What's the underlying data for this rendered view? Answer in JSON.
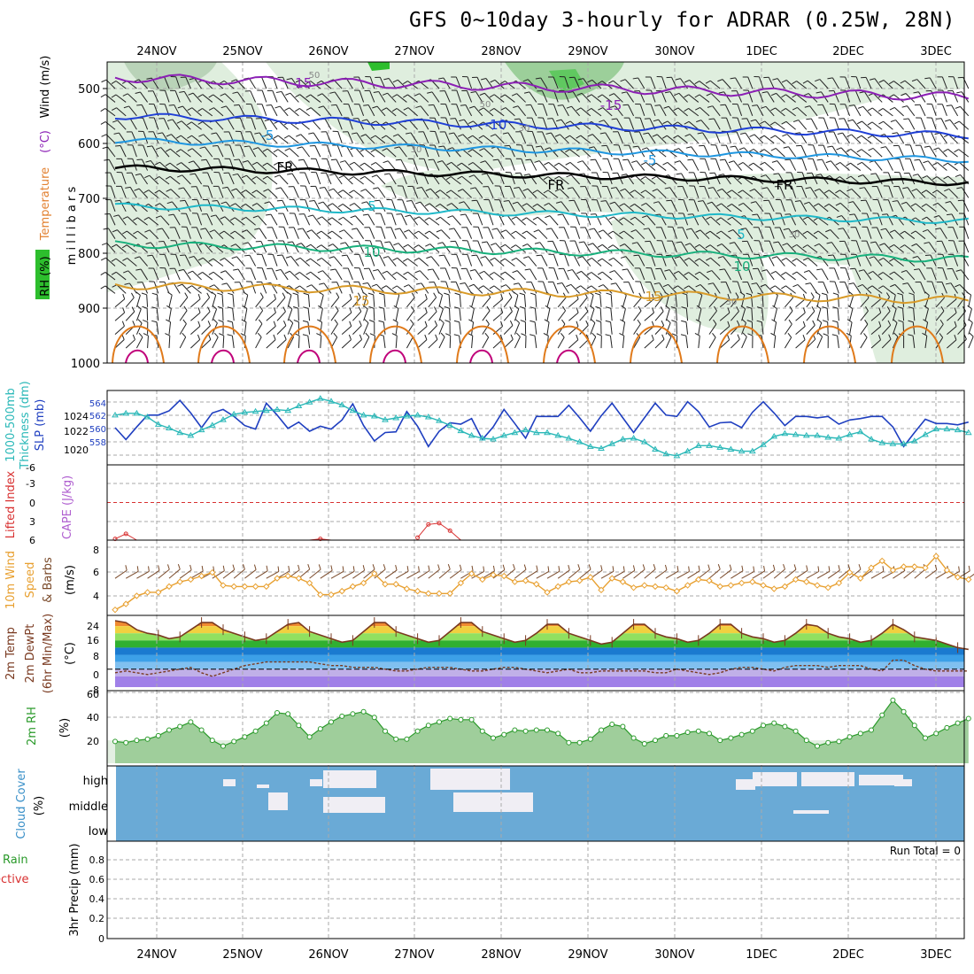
{
  "title": "GFS 0~10day 3-hourly for ADRAR (0.25W, 28N)",
  "dates": [
    "24NOV",
    "25NOV",
    "26NOV",
    "27NOV",
    "28NOV",
    "29NOV",
    "30NOV",
    "1DEC",
    "2DEC",
    "3DEC"
  ],
  "colors": {
    "rh_green": "#2dbe2d",
    "rh_light": "#dfeede",
    "temp_minus15": "#8b1fb5",
    "temp_minus10": "#1f3fd6",
    "temp_minus5": "#1e96e0",
    "temp_fr": "#000000",
    "temp_5": "#1fb8c8",
    "temp_10": "#18b07c",
    "temp_15": "#d89a28",
    "temp_20": "#e07a1a",
    "temp_25": "#c0007a",
    "thickness": "#1f3fc0",
    "slp": "#2ab8b8",
    "lifted": "#d83030",
    "cape": "#b060d0",
    "wind10": "#e8a030",
    "rh2m": "#2a9a2a",
    "cloud": "#6aaad6",
    "cloud_gap": "#f0eef4"
  },
  "upper": {
    "labels": {
      "rh": "RH (%)",
      "temperature": "Temperature",
      "temp_unit": "(°C)",
      "wind": "Wind (m/s)",
      "vertical": "m i l l i b a r s"
    },
    "yticks": [
      "500",
      "600",
      "700",
      "800",
      "900",
      "1000"
    ],
    "contour_labels": [
      {
        "text": "-15",
        "series": "temp_minus15"
      },
      {
        "text": "-15",
        "series": "temp_minus15"
      },
      {
        "text": "-10",
        "series": "temp_minus10"
      },
      {
        "text": "-5",
        "series": "temp_minus5"
      },
      {
        "text": "-5",
        "series": "temp_minus5"
      },
      {
        "text": "FR",
        "series": "temp_fr"
      },
      {
        "text": "FR",
        "series": "temp_fr"
      },
      {
        "text": "FR",
        "series": "temp_fr"
      },
      {
        "text": "5",
        "series": "temp_5"
      },
      {
        "text": "5",
        "series": "temp_5"
      },
      {
        "text": "10",
        "series": "temp_10"
      },
      {
        "text": "10",
        "series": "temp_10"
      },
      {
        "text": "15",
        "series": "temp_15"
      },
      {
        "text": "15",
        "series": "temp_15"
      },
      {
        "text": "50",
        "series": "rh"
      },
      {
        "text": "50",
        "series": "rh"
      },
      {
        "text": "30",
        "series": "rh"
      },
      {
        "text": "30",
        "series": "rh"
      },
      {
        "text": "30",
        "series": "rh"
      },
      {
        "text": "30",
        "series": "rh"
      }
    ]
  },
  "panels": {
    "thick_slp": {
      "label_thickness": "1000-500mb",
      "label_thickness2": "Thickness (dm)",
      "label_slp": "SLP (mb)",
      "yticks_left": [
        "564",
        "562",
        "560",
        "558"
      ],
      "yticks_right": [
        "1024",
        "1022",
        "1020"
      ]
    },
    "li_cape": {
      "label_li": "Lifted Index",
      "label_cape": "CAPE (J/kg)",
      "yticks": [
        "-6",
        "-3",
        "0",
        "3",
        "6"
      ]
    },
    "wind10": {
      "label1": "10m Wind",
      "label2": "Speed",
      "label3": "& Barbs",
      "unit": "(m/s)",
      "yticks": [
        "8",
        "6",
        "4"
      ]
    },
    "temp2m": {
      "label1": "2m Temp",
      "label2": "2m DewPt",
      "label3": "(6hr Min/Max)",
      "unit": "(°C)",
      "yticks": [
        "24",
        "16",
        "8",
        "0",
        "-8"
      ]
    },
    "rh2m": {
      "label": "2m RH",
      "unit": "(%)",
      "yticks": [
        "60",
        "40",
        "20"
      ]
    },
    "cloud": {
      "label1": "Cloud Cover",
      "unit": "(%)",
      "levels": [
        "high",
        "middle",
        "low"
      ]
    },
    "precip": {
      "label1": "Total / Rain",
      "label2": "Convective",
      "label3": "3hr Precip (mm)",
      "run_total": "Run Total = 0",
      "yticks": [
        "0.8",
        "0.6",
        "0.4",
        "0.2",
        "0"
      ]
    }
  },
  "chart_data": [
    {
      "type": "line",
      "title": "",
      "xlabel": "",
      "ylabel": "1000-500mb Thickness (dm)",
      "ylim": [
        557,
        565.6
      ],
      "series": [
        {
          "name": "1000-500mb Thickness (dm)",
          "values": [
            561.3,
            559.6,
            561.4,
            563.1,
            563.1,
            563.7,
            565.2,
            563.4,
            561.3,
            563.4,
            563.9,
            562.9,
            561.6,
            561.1,
            564.8,
            563.1,
            561.2,
            562.1,
            560.8,
            561.5,
            561.1,
            562.4,
            564.7,
            561.6,
            559.4,
            560.6,
            560.7,
            563.6,
            561.5,
            558.6,
            560.8,
            562.0,
            561.8,
            562.6,
            559.6,
            561.4,
            563.9,
            561.9,
            559.8,
            562.9,
            562.9,
            562.9,
            564.5,
            562.7,
            560.8,
            563.0,
            564.8,
            562.7,
            560.6,
            562.7,
            564.8,
            563.1,
            562.9,
            565.0,
            563.6,
            561.4,
            562.0,
            562.1,
            561.3,
            563.5,
            565.0,
            563.4,
            561.6,
            562.9,
            562.9,
            562.7,
            562.9,
            561.8,
            562.4,
            562.6,
            562.9,
            562.9,
            561.4,
            558.6,
            560.6,
            562.5,
            561.9,
            561.9,
            561.7,
            562.1
          ]
        }
      ]
    },
    {
      "type": "line",
      "title": "",
      "xlabel": "",
      "ylabel": "SLP (mb)",
      "ylim": [
        1018.7,
        1025.6
      ],
      "series": [
        {
          "name": "SLP (mb)",
          "values": [
            1023.5,
            1023.7,
            1023.7,
            1023.3,
            1022.5,
            1022.1,
            1021.6,
            1021.3,
            1021.9,
            1022.4,
            1023.0,
            1023.6,
            1023.8,
            1023.9,
            1024.0,
            1024.1,
            1024.0,
            1024.5,
            1024.9,
            1025.3,
            1025.0,
            1024.6,
            1024.0,
            1023.5,
            1023.4,
            1023.0,
            1023.2,
            1023.4,
            1023.5,
            1023.3,
            1022.9,
            1022.4,
            1021.8,
            1021.3,
            1021.0,
            1020.9,
            1021.3,
            1021.6,
            1021.9,
            1021.6,
            1021.6,
            1021.3,
            1021.0,
            1020.6,
            1020.1,
            1019.9,
            1020.4,
            1020.9,
            1021.0,
            1020.6,
            1019.8,
            1019.3,
            1019.1,
            1019.6,
            1020.2,
            1020.2,
            1020.0,
            1019.8,
            1019.6,
            1019.6,
            1020.3,
            1021.2,
            1021.5,
            1021.4,
            1021.3,
            1021.3,
            1021.1,
            1021.0,
            1021.4,
            1021.7,
            1020.9,
            1020.5,
            1020.4,
            1020.4,
            1020.7,
            1021.4,
            1022.0,
            1022.0,
            1021.9,
            1021.6
          ]
        }
      ]
    },
    {
      "type": "line",
      "title": "",
      "xlabel": "",
      "ylabel": "Lifted Index",
      "ylim": [
        -6,
        6
      ],
      "series": [
        {
          "name": "Lifted Index",
          "values": [
            5.8,
            5.0,
            6.0,
            null,
            null,
            null,
            null,
            null,
            null,
            null,
            null,
            null,
            null,
            null,
            null,
            null,
            null,
            null,
            6.0,
            5.8,
            6.0,
            null,
            null,
            null,
            null,
            null,
            null,
            null,
            5.6,
            3.5,
            3.3,
            4.5,
            6.0,
            null,
            null,
            null,
            null,
            null,
            null,
            null,
            null,
            null,
            null,
            null,
            null,
            null,
            null,
            null,
            null,
            null,
            null,
            null,
            null,
            null,
            null,
            null,
            null,
            null,
            null,
            null,
            null,
            null,
            null,
            null,
            null,
            null,
            null,
            null,
            null,
            null,
            null,
            null,
            null,
            null,
            null,
            null,
            null,
            null,
            null,
            null
          ]
        }
      ]
    },
    {
      "type": "line",
      "title": "",
      "xlabel": "",
      "ylabel": "10m Wind Speed (m/s)",
      "ylim": [
        2.9,
        8.6
      ],
      "series": [
        {
          "name": "10m Wind Speed (m/s)",
          "values": [
            3.0,
            3.5,
            4.2,
            4.5,
            4.5,
            5.0,
            5.4,
            5.6,
            5.9,
            6.2,
            5.1,
            5.0,
            5.0,
            5.0,
            5.0,
            5.7,
            5.9,
            5.7,
            5.3,
            4.3,
            4.3,
            4.6,
            5.0,
            5.3,
            6.1,
            5.2,
            5.2,
            4.8,
            4.6,
            4.4,
            4.4,
            4.4,
            5.3,
            6.1,
            5.6,
            6.0,
            5.9,
            5.4,
            5.5,
            5.2,
            4.5,
            5.0,
            5.4,
            5.5,
            5.8,
            4.7,
            5.7,
            5.4,
            4.9,
            5.1,
            5.0,
            4.9,
            4.6,
            5.1,
            5.6,
            5.5,
            5.0,
            5.1,
            5.3,
            5.4,
            5.1,
            4.8,
            5.0,
            5.6,
            5.4,
            5.1,
            4.9,
            5.3,
            6.2,
            5.7,
            6.6,
            7.2,
            6.4,
            6.7,
            6.7,
            6.6,
            7.6,
            6.4,
            5.8,
            5.6
          ]
        }
      ]
    },
    {
      "type": "line",
      "title": "",
      "xlabel": "",
      "ylabel": "2m Temp (°C)",
      "ylim": [
        -10,
        28
      ],
      "series": [
        {
          "name": "2m Temp (°C)",
          "values": [
            27,
            26,
            22,
            20,
            19,
            17,
            18,
            22,
            26,
            26,
            22,
            20,
            18,
            16,
            17,
            21,
            25,
            26,
            21,
            19,
            17,
            15,
            16,
            21,
            26,
            26,
            21,
            19,
            17,
            15,
            16,
            21,
            26,
            26,
            21,
            19,
            17,
            15,
            16,
            20,
            25,
            25,
            20,
            18,
            16,
            14,
            15,
            20,
            25,
            25,
            20,
            18,
            17,
            15,
            16,
            20,
            25,
            25,
            20,
            18,
            17,
            15,
            16,
            20,
            25,
            24,
            20,
            18,
            17,
            15,
            16,
            20,
            25,
            22,
            18,
            17,
            16,
            14,
            12,
            11
          ]
        },
        {
          "name": "2m DewPt (°C)",
          "values": [
            -2,
            -1,
            -2,
            -3,
            -2,
            -1,
            0,
            1,
            -2,
            -4,
            -2,
            0,
            2,
            3,
            4,
            4,
            4,
            4,
            4,
            3,
            2,
            2,
            1,
            1,
            1,
            0,
            -1,
            -1,
            0,
            1,
            1,
            1,
            0,
            -1,
            -1,
            0,
            1,
            1,
            0,
            -1,
            -2,
            -1,
            0,
            -2,
            -2,
            -1,
            -1,
            -1,
            -1,
            -1,
            -2,
            -2,
            0,
            -1,
            -2,
            -3,
            -2,
            0,
            1,
            1,
            0,
            -1,
            1,
            2,
            2,
            2,
            1,
            2,
            2,
            2,
            0,
            -1,
            5,
            5,
            2,
            0,
            -1,
            -1,
            -1,
            -1
          ]
        }
      ]
    },
    {
      "type": "area",
      "title": "",
      "xlabel": "",
      "ylabel": "2m RH (%)",
      "ylim": [
        0,
        61
      ],
      "series": [
        {
          "name": "2m RH (%)",
          "values": [
            19,
            18,
            20,
            21,
            24,
            29,
            32,
            36,
            29,
            20,
            15,
            19,
            23,
            28,
            35,
            44,
            43,
            33,
            23,
            30,
            36,
            41,
            43,
            45,
            40,
            28,
            21,
            21,
            28,
            33,
            36,
            39,
            38,
            38,
            28,
            22,
            25,
            29,
            28,
            29,
            29,
            26,
            18,
            18,
            21,
            29,
            34,
            32,
            22,
            17,
            20,
            24,
            24,
            27,
            28,
            26,
            20,
            22,
            25,
            28,
            33,
            35,
            32,
            28,
            20,
            15,
            18,
            19,
            23,
            26,
            29,
            42,
            55,
            45,
            33,
            22,
            26,
            31,
            35,
            39
          ]
        }
      ]
    }
  ]
}
